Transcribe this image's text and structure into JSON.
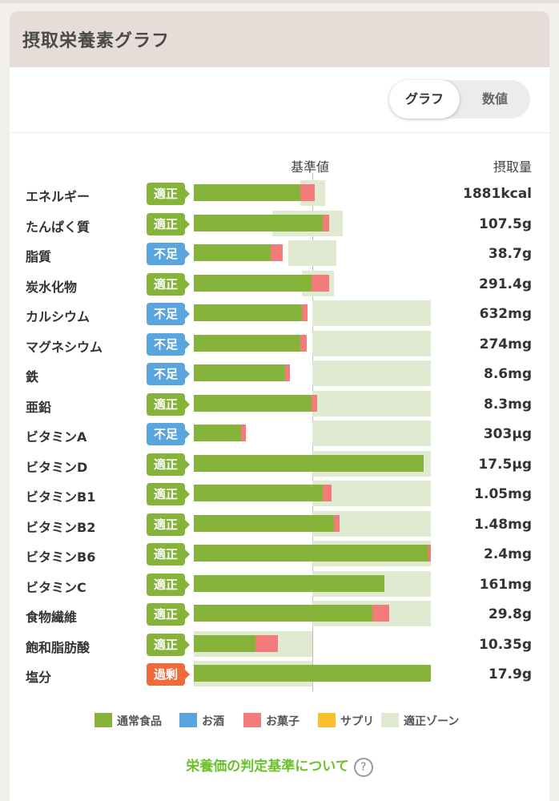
{
  "card": {
    "title": "摂取栄養素グラフ",
    "toggle": {
      "graph_label": "グラフ",
      "value_label": "数値",
      "selected": "グラフ"
    }
  },
  "columns": {
    "reference": "基準値",
    "intake": "摂取量"
  },
  "colors": {
    "food": "#86b33a",
    "alcohol": "#5aa5de",
    "snack": "#f37b7b",
    "supplement": "#fbbf2e",
    "zone": "#dfead0",
    "status_ok": "#86b33a",
    "status_low": "#5aa5de",
    "status_over": "#f06a3a",
    "link": "#6cc12b"
  },
  "chart_data": {
    "type": "bar",
    "orientation": "horizontal",
    "reference_percent": 100,
    "series_names": [
      "通常食品",
      "お酒",
      "お菓子",
      "サプリ",
      "適正ゾーン"
    ],
    "nutrients": [
      {
        "name": "エネルギー",
        "status": "適正",
        "status_type": "ok",
        "amount": "1881kcal",
        "food_pct": 90,
        "snack_pct": 12,
        "zone": [
          90,
          111
        ]
      },
      {
        "name": "たんぱく質",
        "status": "適正",
        "status_type": "ok",
        "amount": "107.5g",
        "food_pct": 109,
        "snack_pct": 5,
        "zone": [
          66,
          126
        ]
      },
      {
        "name": "脂質",
        "status": "不足",
        "status_type": "low",
        "amount": "38.7g",
        "food_pct": 65,
        "snack_pct": 10,
        "zone": [
          80,
          120
        ]
      },
      {
        "name": "炭水化物",
        "status": "適正",
        "status_type": "ok",
        "amount": "291.4g",
        "food_pct": 99,
        "snack_pct": 15,
        "zone": [
          91,
          118
        ]
      },
      {
        "name": "カルシウム",
        "status": "不足",
        "status_type": "low",
        "amount": "632mg",
        "food_pct": 91,
        "snack_pct": 5,
        "zone": [
          100,
          200
        ]
      },
      {
        "name": "マグネシウム",
        "status": "不足",
        "status_type": "low",
        "amount": "274mg",
        "food_pct": 90,
        "snack_pct": 5,
        "zone": [
          100,
          200
        ]
      },
      {
        "name": "鉄",
        "status": "不足",
        "status_type": "low",
        "amount": "8.6mg",
        "food_pct": 77,
        "snack_pct": 4,
        "zone": [
          100,
          200
        ]
      },
      {
        "name": "亜鉛",
        "status": "適正",
        "status_type": "ok",
        "amount": "8.3mg",
        "food_pct": 99,
        "snack_pct": 5,
        "zone": [
          100,
          200
        ]
      },
      {
        "name": "ビタミンA",
        "status": "不足",
        "status_type": "low",
        "amount": "303µg",
        "food_pct": 40,
        "snack_pct": 4,
        "zone": [
          100,
          200
        ]
      },
      {
        "name": "ビタミンD",
        "status": "適正",
        "status_type": "ok",
        "amount": "17.5µg",
        "food_pct": 194,
        "snack_pct": 0,
        "zone": [
          100,
          200
        ]
      },
      {
        "name": "ビタミンB1",
        "status": "適正",
        "status_type": "ok",
        "amount": "1.05mg",
        "food_pct": 109,
        "snack_pct": 7,
        "zone": [
          100,
          200
        ]
      },
      {
        "name": "ビタミンB2",
        "status": "適正",
        "status_type": "ok",
        "amount": "1.48mg",
        "food_pct": 118,
        "snack_pct": 5,
        "zone": [
          100,
          200
        ]
      },
      {
        "name": "ビタミンB6",
        "status": "適正",
        "status_type": "ok",
        "amount": "2.4mg",
        "food_pct": 198,
        "snack_pct": 2,
        "zone": [
          100,
          200
        ]
      },
      {
        "name": "ビタミンC",
        "status": "適正",
        "status_type": "ok",
        "amount": "161mg",
        "food_pct": 161,
        "snack_pct": 0,
        "zone": [
          100,
          200
        ]
      },
      {
        "name": "食物繊維",
        "status": "適正",
        "status_type": "ok",
        "amount": "29.8g",
        "food_pct": 151,
        "snack_pct": 14,
        "zone": [
          100,
          200
        ]
      },
      {
        "name": "飽和脂肪酸",
        "status": "適正",
        "status_type": "ok",
        "amount": "10.35g",
        "food_pct": 52,
        "snack_pct": 19,
        "zone": [
          0,
          100
        ]
      },
      {
        "name": "塩分",
        "status": "過剰",
        "status_type": "over",
        "amount": "17.9g",
        "food_pct": 200,
        "snack_pct": 0,
        "zone": [
          0,
          100
        ]
      }
    ]
  },
  "legend": [
    {
      "label": "通常食品",
      "color": "#86b33a"
    },
    {
      "label": "お酒",
      "color": "#5aa5de"
    },
    {
      "label": "お菓子",
      "color": "#f37b7b"
    },
    {
      "label": "サプリ",
      "color": "#fbbf2e"
    },
    {
      "label": "適正ゾーン",
      "color": "#dfead0"
    }
  ],
  "help": {
    "link_label": "栄養価の判定基準について",
    "icon": "question-circle-icon"
  }
}
